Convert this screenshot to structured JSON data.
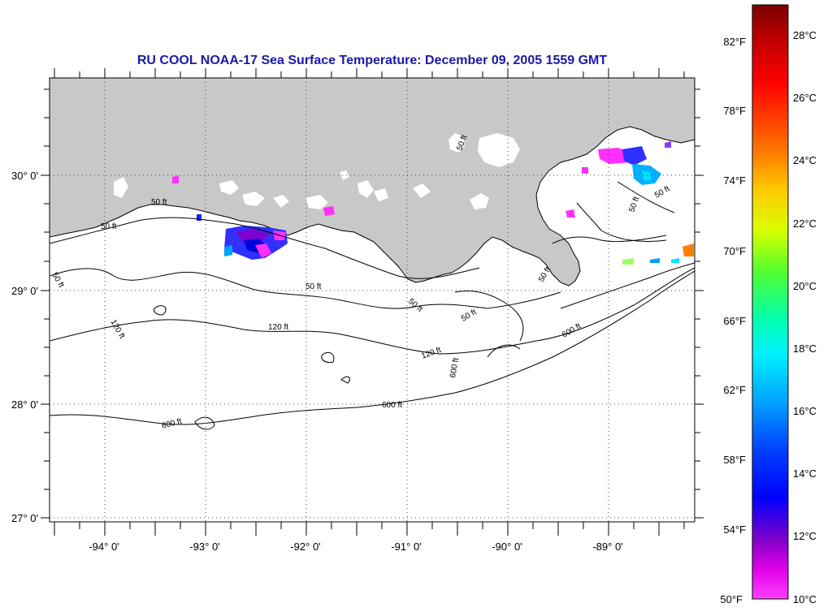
{
  "title": "RU COOL  NOAA-17  Sea Surface Temperature:  December 09, 2005 1559 GMT",
  "colors": {
    "land": "#c8c8c8",
    "water": "#ffffff",
    "title": "#1a1aa8",
    "contour": "#000000"
  },
  "latitude_labels": [
    "30° 0'",
    "29° 0'",
    "28° 0'",
    "27° 0'"
  ],
  "longitude_labels": [
    "-94° 0'",
    "-93° 0'",
    "-92° 0'",
    "-91° 0'",
    "-90° 0'",
    "-89° 0'"
  ],
  "contour_labels": {
    "ft50": "50 ft",
    "ft120": "120 ft",
    "ft600": "600 ft"
  },
  "legend": {
    "fahrenheit": [
      "82°F",
      "78°F",
      "74°F",
      "70°F",
      "66°F",
      "62°F",
      "58°F",
      "54°F",
      "50°F"
    ],
    "celsius": [
      "28°C",
      "26°C",
      "24°C",
      "22°C",
      "20°C",
      "18°C",
      "16°C",
      "14°C",
      "12°C",
      "10°C"
    ],
    "gradient_stops": [
      "#7a0000",
      "#c80000",
      "#ff0000",
      "#ff7a00",
      "#ffd000",
      "#d0ff00",
      "#40ff40",
      "#00ffb0",
      "#00ffff",
      "#00a0ff",
      "#0030ff",
      "#0000e0",
      "#8000c0",
      "#ff00ff",
      "#ff40ff"
    ]
  }
}
